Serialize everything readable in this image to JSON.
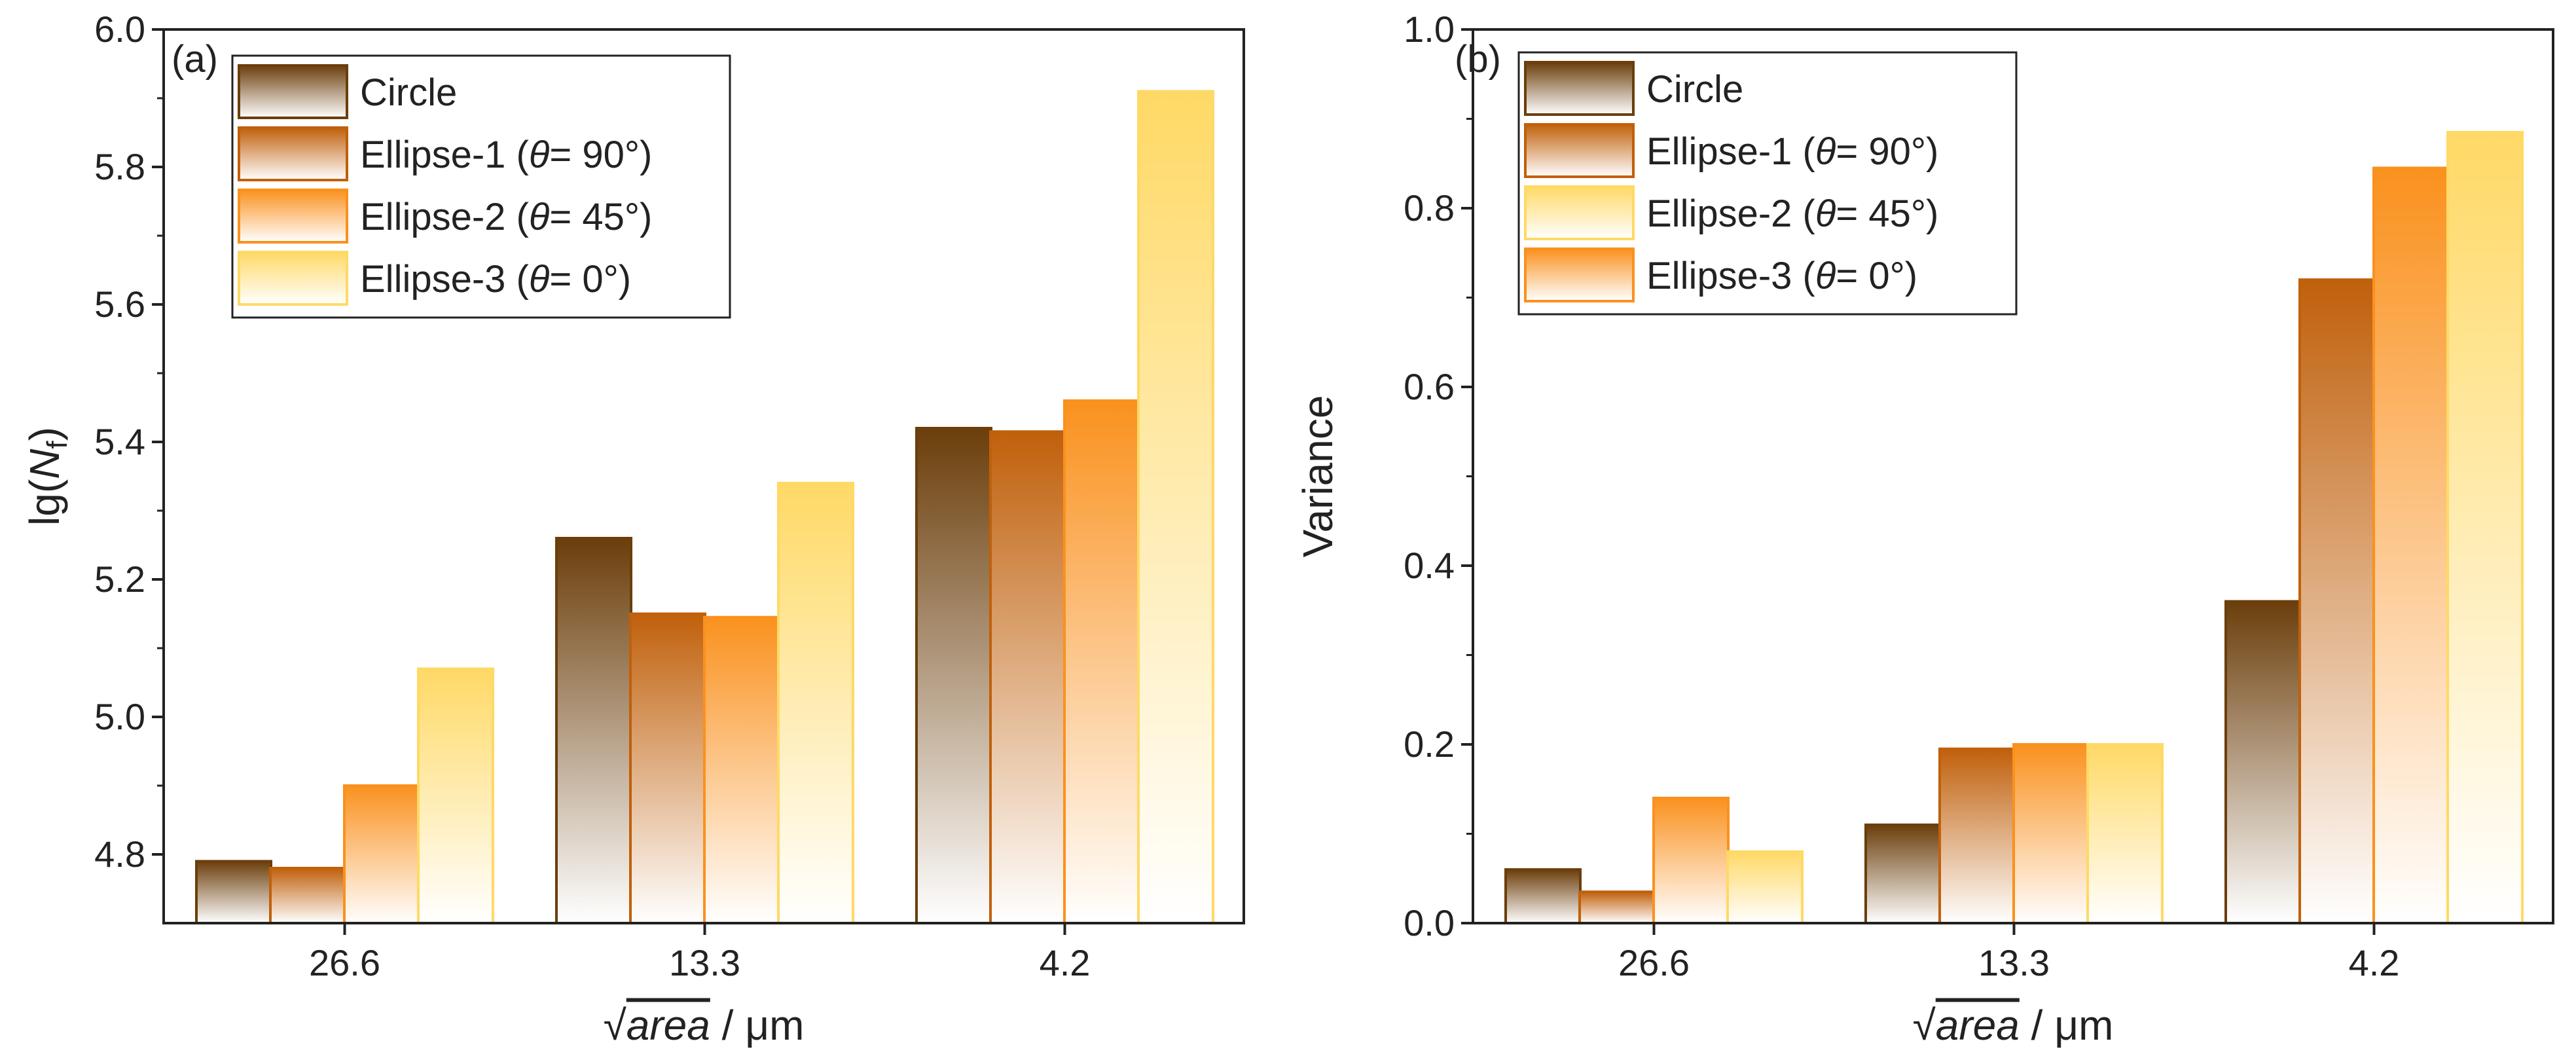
{
  "figure": {
    "colors": {
      "circle": "#6B3E0B",
      "ellipse_90": "#C0600B",
      "ellipse_45": "#FA911E",
      "ellipse_0": "#FFD966",
      "bar_bottom": "#FFFFFF",
      "axis": "#222222"
    }
  },
  "chart_data": [
    {
      "id": "a",
      "panel_label": "(a)",
      "type": "bar",
      "ylabel_main": "lg(N",
      "ylabel_sub": "f",
      "ylabel_end": ")",
      "xlabel_main": "area",
      "xlabel_unit": " / μm",
      "xlabel_radical": "√",
      "categories": [
        "26.6",
        "13.3",
        "4.2"
      ],
      "ylim": [
        4.7,
        6.0
      ],
      "yticks": [
        "4.8",
        "5.0",
        "5.2",
        "5.4",
        "5.6",
        "5.8",
        "6.0"
      ],
      "ytick_values": [
        4.8,
        5.0,
        5.2,
        5.4,
        5.6,
        5.8,
        6.0
      ],
      "series": [
        {
          "name": "Circle",
          "color_key": "circle",
          "values": [
            4.79,
            5.26,
            5.42
          ]
        },
        {
          "name": "Ellipse-1",
          "color_key": "ellipse_90",
          "values": [
            4.78,
            5.15,
            5.415
          ]
        },
        {
          "name": "Ellipse-2",
          "color_key": "ellipse_45",
          "values": [
            4.9,
            5.145,
            5.46
          ]
        },
        {
          "name": "Ellipse-3",
          "color_key": "ellipse_0",
          "values": [
            5.07,
            5.34,
            5.91
          ]
        }
      ],
      "legend": [
        {
          "name": "Circle",
          "theta": "",
          "color_key": "circle"
        },
        {
          "name": "Ellipse-1 (",
          "theta": "= 90°)",
          "color_key": "ellipse_90"
        },
        {
          "name": "Ellipse-2 (",
          "theta": "= 45°)",
          "color_key": "ellipse_45"
        },
        {
          "name": "Ellipse-3 (",
          "theta": "= 0°)",
          "color_key": "ellipse_0"
        }
      ]
    },
    {
      "id": "b",
      "panel_label": "(b)",
      "type": "bar",
      "ylabel_main": "Variance",
      "xlabel_main": "area",
      "xlabel_unit": " / μm",
      "xlabel_radical": "√",
      "categories": [
        "26.6",
        "13.3",
        "4.2"
      ],
      "ylim": [
        0.0,
        1.0
      ],
      "yticks": [
        "0.0",
        "0.2",
        "0.4",
        "0.6",
        "0.8",
        "1.0"
      ],
      "ytick_values": [
        0.0,
        0.2,
        0.4,
        0.6,
        0.8,
        1.0
      ],
      "series": [
        {
          "name": "Circle",
          "color_key": "circle",
          "values": [
            0.06,
            0.11,
            0.36
          ]
        },
        {
          "name": "Ellipse-1",
          "color_key": "ellipse_90",
          "values": [
            0.035,
            0.195,
            0.72
          ]
        },
        {
          "name": "Ellipse-3",
          "color_key": "ellipse_45",
          "values": [
            0.14,
            0.2,
            0.845
          ]
        },
        {
          "name": "Ellipse-2",
          "color_key": "ellipse_0",
          "values": [
            0.08,
            0.2,
            0.885
          ]
        }
      ],
      "legend": [
        {
          "name": "Circle",
          "theta": "",
          "color_key": "circle"
        },
        {
          "name": "Ellipse-1 (",
          "theta": "= 90°)",
          "color_key": "ellipse_90"
        },
        {
          "name": "Ellipse-2 (",
          "theta": "= 45°)",
          "color_key": "ellipse_0"
        },
        {
          "name": "Ellipse-3 (",
          "theta": "= 0°)",
          "color_key": "ellipse_45"
        }
      ]
    }
  ],
  "symbols": {
    "theta": "θ"
  }
}
